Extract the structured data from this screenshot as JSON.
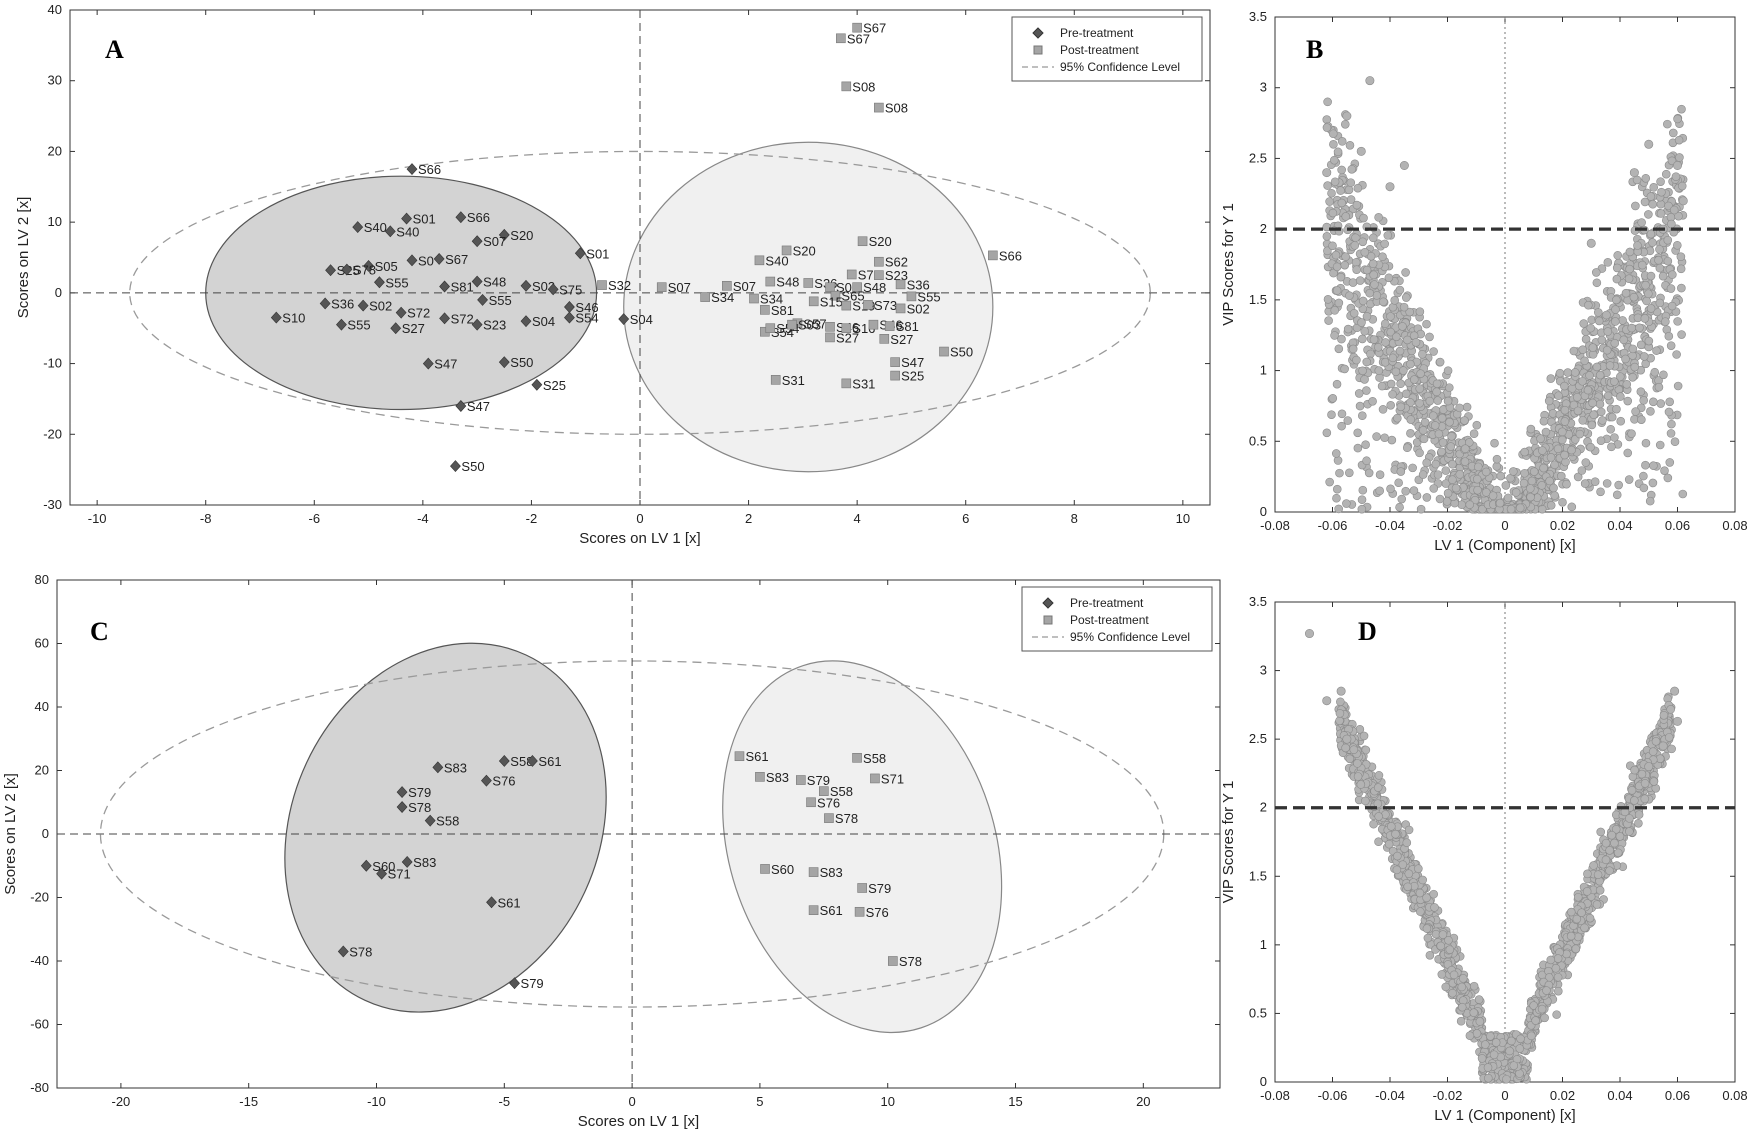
{
  "chart_data": [
    {
      "panel": "A",
      "type": "scatter",
      "xlabel": "Scores on LV 1 [x]",
      "ylabel": "Scores on LV 2 [x]",
      "xlim": [
        -10.5,
        10.5
      ],
      "ylim": [
        -30,
        40
      ],
      "xticks": [
        -10,
        -8,
        -6,
        -4,
        -2,
        0,
        2,
        4,
        6,
        8,
        10
      ],
      "yticks": [
        -30,
        -20,
        -10,
        0,
        10,
        20,
        30,
        40
      ],
      "grid": false,
      "legend_position": "top-right",
      "legend": [
        "Pre-treatment",
        "Post-treatment",
        "95% Confidence Level"
      ],
      "series": [
        {
          "name": "Pre-treatment",
          "marker": "diamond",
          "color": "#555555",
          "points": [
            {
              "label": "S66",
              "x": -4.2,
              "y": 17.5
            },
            {
              "label": "S01",
              "x": -4.3,
              "y": 10.5
            },
            {
              "label": "S66",
              "x": -3.3,
              "y": 10.7
            },
            {
              "label": "S40",
              "x": -5.2,
              "y": 9.3
            },
            {
              "label": "S40",
              "x": -4.6,
              "y": 8.7
            },
            {
              "label": "S20",
              "x": -2.5,
              "y": 8.2
            },
            {
              "label": "S07",
              "x": -3.0,
              "y": 7.3
            },
            {
              "label": "S01",
              "x": -1.1,
              "y": 5.6
            },
            {
              "label": "S67",
              "x": -3.7,
              "y": 4.8
            },
            {
              "label": "S05",
              "x": -5.0,
              "y": 3.8
            },
            {
              "label": "S0",
              "x": -4.2,
              "y": 4.6
            },
            {
              "label": "S25",
              "x": -5.7,
              "y": 3.2
            },
            {
              "label": "S78",
              "x": -5.4,
              "y": 3.3
            },
            {
              "label": "S55",
              "x": -4.8,
              "y": 1.5
            },
            {
              "label": "S48",
              "x": -3.0,
              "y": 1.6
            },
            {
              "label": "S03",
              "x": -2.1,
              "y": 1.0
            },
            {
              "label": "S75",
              "x": -1.6,
              "y": 0.5
            },
            {
              "label": "S81",
              "x": -3.6,
              "y": 0.9
            },
            {
              "label": "S55",
              "x": -2.9,
              "y": -1.0
            },
            {
              "label": "S46",
              "x": -1.3,
              "y": -2.0
            },
            {
              "label": "S02",
              "x": -5.1,
              "y": -1.8
            },
            {
              "label": "S36",
              "x": -5.8,
              "y": -1.5
            },
            {
              "label": "S72",
              "x": -4.4,
              "y": -2.8
            },
            {
              "label": "S72",
              "x": -3.6,
              "y": -3.6
            },
            {
              "label": "S54",
              "x": -1.3,
              "y": -3.5
            },
            {
              "label": "S04",
              "x": -0.3,
              "y": -3.7
            },
            {
              "label": "S10",
              "x": -6.7,
              "y": -3.5
            },
            {
              "label": "S55",
              "x": -5.5,
              "y": -4.5
            },
            {
              "label": "S27",
              "x": -4.5,
              "y": -5.0
            },
            {
              "label": "S23",
              "x": -3.0,
              "y": -4.5
            },
            {
              "label": "S04",
              "x": -2.1,
              "y": -4.0
            },
            {
              "label": "S47",
              "x": -3.9,
              "y": -10.0
            },
            {
              "label": "S50",
              "x": -2.5,
              "y": -9.8
            },
            {
              "label": "S25",
              "x": -1.9,
              "y": -13.0
            },
            {
              "label": "S47",
              "x": -3.3,
              "y": -16.0
            },
            {
              "label": "S50",
              "x": -3.4,
              "y": -24.5
            }
          ]
        },
        {
          "name": "Post-treatment",
          "marker": "square",
          "color": "#a5a5a5",
          "points": [
            {
              "label": "S67",
              "x": 4.0,
              "y": 37.5
            },
            {
              "label": "S67",
              "x": 3.7,
              "y": 36.0
            },
            {
              "label": "S08",
              "x": 3.8,
              "y": 29.2
            },
            {
              "label": "S08",
              "x": 4.4,
              "y": 26.2
            },
            {
              "label": "S20",
              "x": 4.1,
              "y": 7.3
            },
            {
              "label": "S20",
              "x": 2.7,
              "y": 6.0
            },
            {
              "label": "S40",
              "x": 2.2,
              "y": 4.6
            },
            {
              "label": "S66",
              "x": 6.5,
              "y": 5.3
            },
            {
              "label": "S62",
              "x": 4.4,
              "y": 4.4
            },
            {
              "label": "S75",
              "x": 3.9,
              "y": 2.6
            },
            {
              "label": "S23",
              "x": 4.4,
              "y": 2.5
            },
            {
              "label": "S48",
              "x": 2.4,
              "y": 1.6
            },
            {
              "label": "S36",
              "x": 3.1,
              "y": 1.4
            },
            {
              "label": "S01",
              "x": 3.5,
              "y": 0.8
            },
            {
              "label": "S48",
              "x": 4.0,
              "y": 0.8
            },
            {
              "label": "S36",
              "x": 4.8,
              "y": 1.2
            },
            {
              "label": "S55",
              "x": 5.0,
              "y": -0.5
            },
            {
              "label": "S32",
              "x": -0.7,
              "y": 1.1
            },
            {
              "label": "S07",
              "x": 0.4,
              "y": 0.8
            },
            {
              "label": "S07",
              "x": 1.6,
              "y": 1.0
            },
            {
              "label": "S34",
              "x": 1.2,
              "y": -0.6
            },
            {
              "label": "S34",
              "x": 2.1,
              "y": -0.8
            },
            {
              "label": "S65",
              "x": 3.6,
              "y": -0.4
            },
            {
              "label": "S15",
              "x": 3.2,
              "y": -1.2
            },
            {
              "label": "S19",
              "x": 3.8,
              "y": -1.8
            },
            {
              "label": "S73",
              "x": 4.2,
              "y": -1.7
            },
            {
              "label": "S02",
              "x": 4.8,
              "y": -2.2
            },
            {
              "label": "S81",
              "x": 2.3,
              "y": -2.4
            },
            {
              "label": "S57",
              "x": 2.9,
              "y": -4.3
            },
            {
              "label": "S46",
              "x": 3.5,
              "y": -4.8
            },
            {
              "label": "S16",
              "x": 3.8,
              "y": -5.0
            },
            {
              "label": "S46",
              "x": 4.3,
              "y": -4.5
            },
            {
              "label": "S81",
              "x": 4.6,
              "y": -4.7
            },
            {
              "label": "S54",
              "x": 2.3,
              "y": -5.5
            },
            {
              "label": "S54",
              "x": 2.4,
              "y": -5.0
            },
            {
              "label": "S03",
              "x": 2.8,
              "y": -4.5
            },
            {
              "label": "S27",
              "x": 3.5,
              "y": -6.3
            },
            {
              "label": "S27",
              "x": 4.5,
              "y": -6.5
            },
            {
              "label": "S50",
              "x": 5.6,
              "y": -8.3
            },
            {
              "label": "S47",
              "x": 4.7,
              "y": -9.8
            },
            {
              "label": "S25",
              "x": 4.7,
              "y": -11.7
            },
            {
              "label": "S31",
              "x": 2.5,
              "y": -12.3
            },
            {
              "label": "S31",
              "x": 3.8,
              "y": -12.8
            }
          ]
        }
      ],
      "ellipses": [
        {
          "name": "Pre-treatment",
          "cx": -4.4,
          "cy": 0.0,
          "rx": 3.6,
          "ry": 16.5,
          "fill": "#d3d3d3",
          "stroke": "#555555"
        },
        {
          "name": "Post-treatment",
          "cx": 3.1,
          "cy": -2.0,
          "rx": 3.4,
          "ry": 23.3,
          "fill": "#f0f0f0",
          "stroke": "#888888"
        },
        {
          "name": "95% Confidence Level",
          "cx": 0.0,
          "cy": 0.0,
          "rx": 9.4,
          "ry": 20.0,
          "dashed": true
        }
      ]
    },
    {
      "panel": "B",
      "type": "scatter",
      "xlabel": "LV 1 (Component) [x]",
      "ylabel": "VIP Scores for Y 1",
      "xlim": [
        -0.08,
        0.08
      ],
      "ylim": [
        0,
        3.5
      ],
      "xticks": [
        -0.08,
        -0.06,
        -0.04,
        -0.02,
        0,
        0.02,
        0.04,
        0.06,
        0.08
      ],
      "yticks": [
        0,
        0.5,
        1,
        1.5,
        2,
        2.5,
        3,
        3.5
      ],
      "threshold": 2,
      "grid": false,
      "shape": "V-shaped cloud, widely scattered",
      "points_sample": [
        {
          "x": -0.047,
          "y": 3.05
        },
        {
          "x": -0.055,
          "y": 2.8
        },
        {
          "x": -0.062,
          "y": 2.4
        },
        {
          "x": -0.05,
          "y": 2.55
        },
        {
          "x": -0.04,
          "y": 2.3
        },
        {
          "x": -0.035,
          "y": 2.45
        },
        {
          "x": 0.05,
          "y": 2.6
        },
        {
          "x": 0.06,
          "y": 2.45
        },
        {
          "x": 0.045,
          "y": 2.4
        },
        {
          "x": 0.062,
          "y": 2.2
        },
        {
          "x": 0.055,
          "y": 2.0
        },
        {
          "x": 0.03,
          "y": 1.9
        }
      ]
    },
    {
      "panel": "C",
      "type": "scatter",
      "xlabel": "Scores on LV 1 [x]",
      "ylabel": "Scores on LV 2 [x]",
      "xlim": [
        -22.5,
        23
      ],
      "ylim": [
        -80,
        80
      ],
      "xticks": [
        -20,
        -15,
        -10,
        -5,
        0,
        5,
        10,
        15,
        20
      ],
      "yticks": [
        -80,
        -60,
        -40,
        -20,
        0,
        20,
        40,
        60,
        80
      ],
      "grid": false,
      "legend_position": "top-right",
      "legend": [
        "Pre-treatment",
        "Post-treatment",
        "95% Confidence Level"
      ],
      "series": [
        {
          "name": "Pre-treatment",
          "marker": "diamond",
          "color": "#555555",
          "points": [
            {
              "label": "S58",
              "x": -5.0,
              "y": 23.0
            },
            {
              "label": "S61",
              "x": -3.9,
              "y": 23.0
            },
            {
              "label": "S83",
              "x": -7.6,
              "y": 21.0
            },
            {
              "label": "S76",
              "x": -5.7,
              "y": 16.8
            },
            {
              "label": "S79",
              "x": -9.0,
              "y": 13.2
            },
            {
              "label": "S78",
              "x": -9.0,
              "y": 8.5
            },
            {
              "label": "S58",
              "x": -7.9,
              "y": 4.2
            },
            {
              "label": "S60",
              "x": -10.4,
              "y": -10.0
            },
            {
              "label": "S83",
              "x": -8.8,
              "y": -8.8
            },
            {
              "label": "S71",
              "x": -9.8,
              "y": -12.5
            },
            {
              "label": "S61",
              "x": -5.5,
              "y": -21.5
            },
            {
              "label": "S78",
              "x": -11.3,
              "y": -37.0
            },
            {
              "label": "S79",
              "x": -4.6,
              "y": -47.0
            }
          ]
        },
        {
          "name": "Post-treatment",
          "marker": "square",
          "color": "#a5a5a5",
          "points": [
            {
              "label": "S61",
              "x": 4.2,
              "y": 24.5
            },
            {
              "label": "S58",
              "x": 8.8,
              "y": 24.0
            },
            {
              "label": "S83",
              "x": 5.0,
              "y": 18.0
            },
            {
              "label": "S79",
              "x": 6.6,
              "y": 17.0
            },
            {
              "label": "S71",
              "x": 9.5,
              "y": 17.5
            },
            {
              "label": "S58",
              "x": 7.5,
              "y": 13.5
            },
            {
              "label": "S76",
              "x": 7.0,
              "y": 10.0
            },
            {
              "label": "S78",
              "x": 7.7,
              "y": 5.0
            },
            {
              "label": "S60",
              "x": 5.2,
              "y": -11.0
            },
            {
              "label": "S83",
              "x": 7.1,
              "y": -12.0
            },
            {
              "label": "S79",
              "x": 9.0,
              "y": -17.0
            },
            {
              "label": "S61",
              "x": 7.1,
              "y": -24.0
            },
            {
              "label": "S76",
              "x": 8.9,
              "y": -24.5
            },
            {
              "label": "S78",
              "x": 10.2,
              "y": -40.0
            }
          ]
        }
      ],
      "ellipses": [
        {
          "name": "Pre-treatment",
          "cx": -7.3,
          "cy": 2.0,
          "rx": 6.0,
          "ry": 60.0,
          "tilt": 25,
          "fill": "#d3d3d3",
          "stroke": "#555555"
        },
        {
          "name": "Post-treatment",
          "cx": 9.0,
          "cy": -4.0,
          "rx": 5.2,
          "ry": 60.0,
          "tilt": -18,
          "fill": "#f0f0f0",
          "stroke": "#888888"
        },
        {
          "name": "95% Confidence Level",
          "cx": 0.0,
          "cy": 0.0,
          "rx": 20.8,
          "ry": 54.5,
          "dashed": true
        }
      ]
    },
    {
      "panel": "D",
      "type": "scatter",
      "xlabel": "LV 1 (Component) [x]",
      "ylabel": "VIP Scores for Y 1",
      "xlim": [
        -0.08,
        0.08
      ],
      "ylim": [
        0,
        3.5
      ],
      "xticks": [
        -0.08,
        -0.06,
        -0.04,
        -0.02,
        0,
        0.02,
        0.04,
        0.06,
        0.08
      ],
      "yticks": [
        0,
        0.5,
        1,
        1.5,
        2,
        2.5,
        3,
        3.5
      ],
      "threshold": 2,
      "grid": false,
      "shape": "tight V-shaped curve",
      "points_sample": [
        {
          "x": -0.068,
          "y": 3.27
        },
        {
          "x": -0.062,
          "y": 2.78
        },
        {
          "x": -0.057,
          "y": 2.85
        },
        {
          "x": -0.055,
          "y": 2.5
        },
        {
          "x": 0.059,
          "y": 2.85
        },
        {
          "x": 0.06,
          "y": 2.63
        },
        {
          "x": 0.055,
          "y": 2.45
        },
        {
          "x": 0.05,
          "y": 2.3
        }
      ]
    }
  ],
  "legend_labels": {
    "pre": "Pre-treatment",
    "post": "Post-treatment",
    "ci": "95% Confidence Level"
  },
  "panel_letters": [
    "A",
    "B",
    "C",
    "D"
  ]
}
